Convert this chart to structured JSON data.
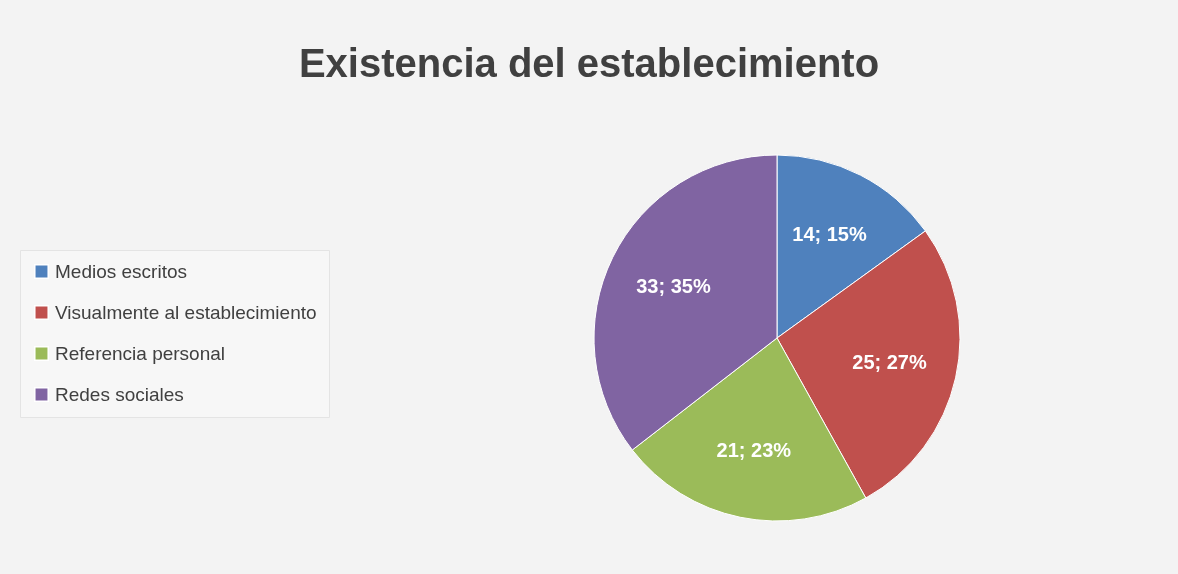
{
  "chart_data": {
    "type": "pie",
    "title": "Existencia del establecimiento",
    "categories": [
      "Medios escritos",
      "Visualmente al establecimiento",
      "Referencia personal",
      "Redes sociales"
    ],
    "values": [
      14,
      25,
      21,
      33
    ],
    "colors": [
      "#4f81bd",
      "#c0504d",
      "#9bbb59",
      "#8064a2"
    ],
    "value_labels": [
      "14; 15%",
      "25; 27%",
      "21; 23%",
      "33; 35%"
    ],
    "legend": "left"
  }
}
